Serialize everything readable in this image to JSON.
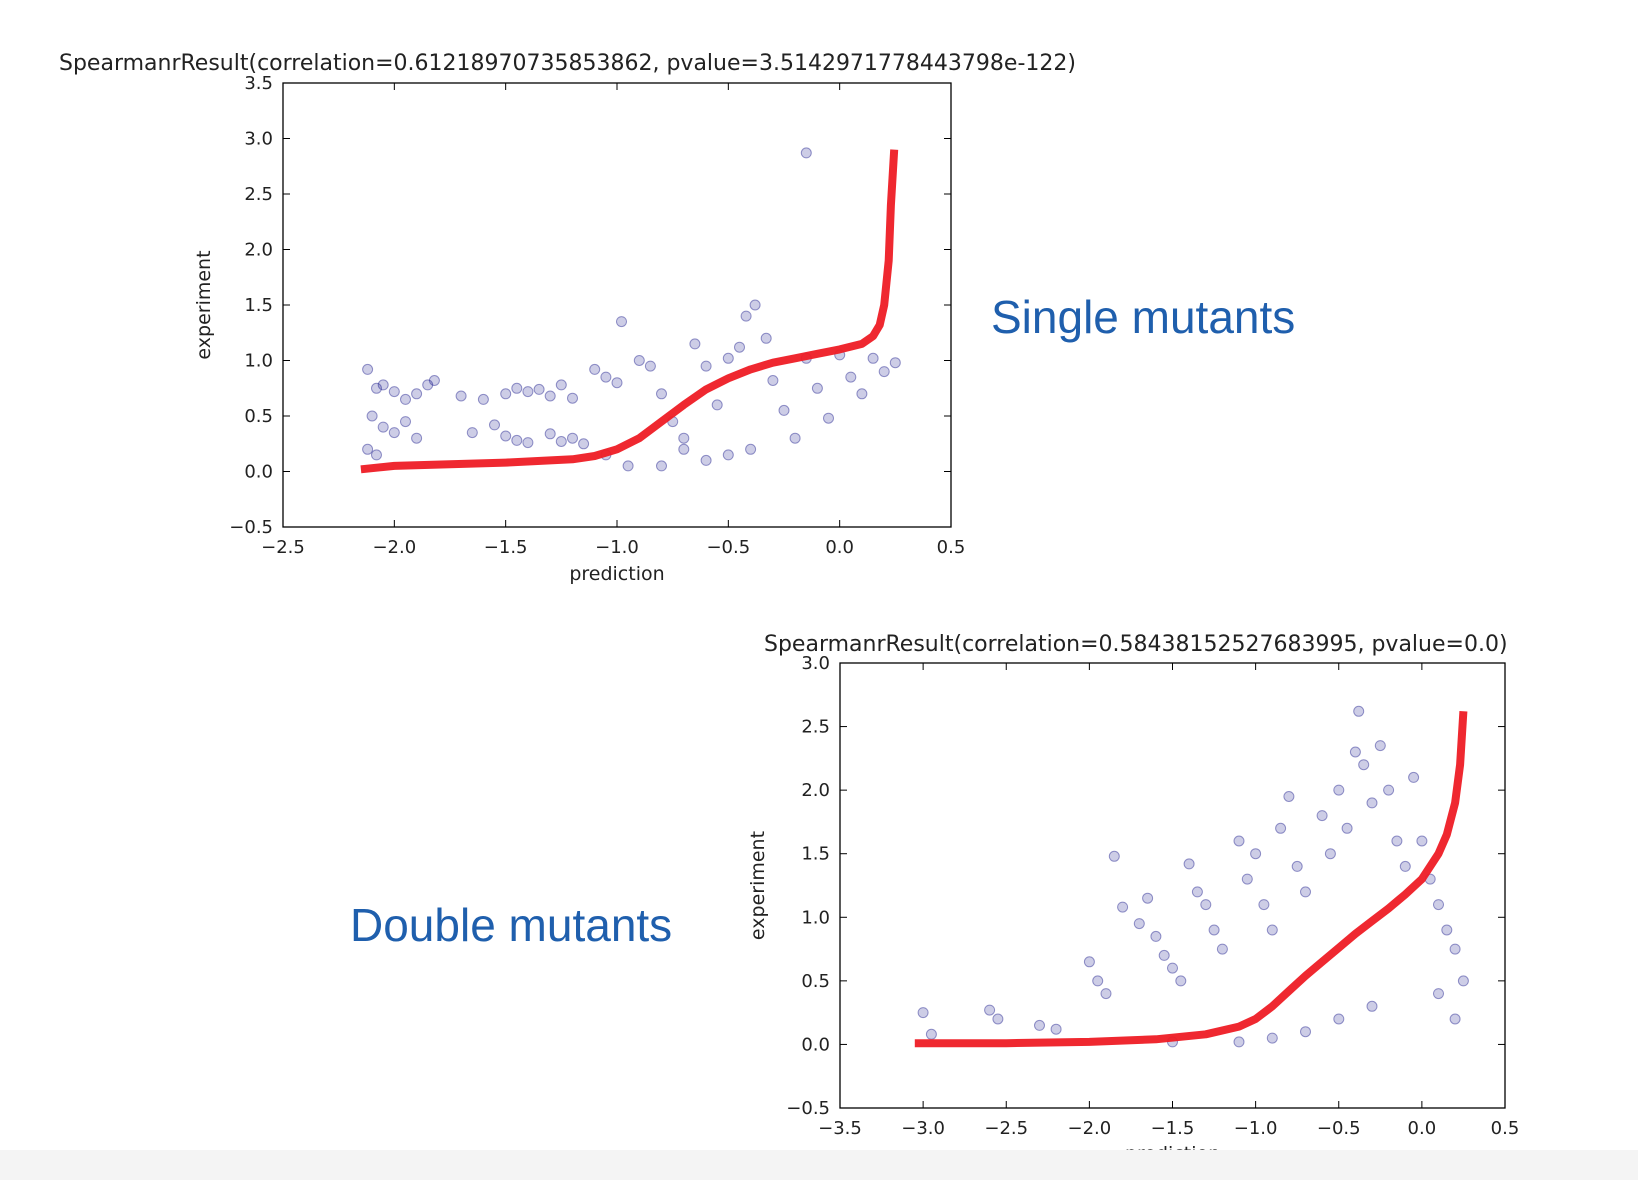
{
  "captions": {
    "single": "Single mutants",
    "double": "Double mutants"
  },
  "colors": {
    "points": "#1a1a8c",
    "curve": "#ee1c25",
    "caption": "#1f5fad"
  },
  "chart_data": [
    {
      "type": "scatter",
      "title": "SpearmanrResult(correlation=0.61218970735853862, pvalue=3.5142971778443798e-122)",
      "xlabel": "prediction",
      "ylabel": "experiment",
      "xlim": [
        -2.5,
        0.5
      ],
      "ylim": [
        -0.5,
        3.5
      ],
      "xticks": [
        -2.5,
        -2.0,
        -1.5,
        -1.0,
        -0.5,
        0.0,
        0.5
      ],
      "yticks": [
        -0.5,
        0.0,
        0.5,
        1.0,
        1.5,
        2.0,
        2.5,
        3.0,
        3.5
      ],
      "xtick_labels": [
        "−2.5",
        "−2.0",
        "−1.5",
        "−1.0",
        "−0.5",
        "0.0",
        "0.5"
      ],
      "ytick_labels": [
        "−0.5",
        "0.0",
        "0.5",
        "1.0",
        "1.5",
        "2.0",
        "2.5",
        "3.0",
        "3.5"
      ],
      "grid": false,
      "series": [
        {
          "kind": "scatter",
          "points": [
            [
              -2.12,
              0.92
            ],
            [
              -2.08,
              0.75
            ],
            [
              -2.05,
              0.78
            ],
            [
              -2.0,
              0.72
            ],
            [
              -1.95,
              0.65
            ],
            [
              -1.9,
              0.7
            ],
            [
              -1.85,
              0.78
            ],
            [
              -1.82,
              0.82
            ],
            [
              -2.1,
              0.5
            ],
            [
              -2.05,
              0.4
            ],
            [
              -2.0,
              0.35
            ],
            [
              -1.95,
              0.45
            ],
            [
              -1.9,
              0.3
            ],
            [
              -2.12,
              0.2
            ],
            [
              -2.08,
              0.15
            ],
            [
              -1.7,
              0.68
            ],
            [
              -1.6,
              0.65
            ],
            [
              -1.5,
              0.7
            ],
            [
              -1.45,
              0.75
            ],
            [
              -1.4,
              0.72
            ],
            [
              -1.35,
              0.74
            ],
            [
              -1.3,
              0.68
            ],
            [
              -1.25,
              0.78
            ],
            [
              -1.2,
              0.66
            ],
            [
              -1.65,
              0.35
            ],
            [
              -1.55,
              0.42
            ],
            [
              -1.5,
              0.32
            ],
            [
              -1.45,
              0.28
            ],
            [
              -1.4,
              0.26
            ],
            [
              -1.3,
              0.34
            ],
            [
              -1.25,
              0.27
            ],
            [
              -1.2,
              0.3
            ],
            [
              -1.15,
              0.25
            ],
            [
              -1.1,
              0.92
            ],
            [
              -1.05,
              0.85
            ],
            [
              -1.0,
              0.8
            ],
            [
              -0.98,
              1.35
            ],
            [
              -0.9,
              1.0
            ],
            [
              -0.85,
              0.95
            ],
            [
              -0.8,
              0.7
            ],
            [
              -0.75,
              0.45
            ],
            [
              -0.7,
              0.3
            ],
            [
              -0.65,
              1.15
            ],
            [
              -0.6,
              0.95
            ],
            [
              -0.55,
              0.6
            ],
            [
              -0.5,
              1.02
            ],
            [
              -0.45,
              1.12
            ],
            [
              -0.42,
              1.4
            ],
            [
              -0.38,
              1.5
            ],
            [
              -0.33,
              1.2
            ],
            [
              -0.3,
              0.82
            ],
            [
              -0.25,
              0.55
            ],
            [
              -0.2,
              0.3
            ],
            [
              -0.15,
              2.87
            ],
            [
              -0.15,
              1.02
            ],
            [
              -0.1,
              0.75
            ],
            [
              -0.05,
              0.48
            ],
            [
              0.0,
              1.05
            ],
            [
              0.05,
              0.85
            ],
            [
              0.1,
              0.7
            ],
            [
              0.15,
              1.02
            ],
            [
              0.2,
              0.9
            ],
            [
              0.25,
              0.98
            ],
            [
              -0.6,
              0.1
            ],
            [
              -0.7,
              0.2
            ],
            [
              -0.8,
              0.05
            ],
            [
              -0.5,
              0.15
            ],
            [
              -0.4,
              0.2
            ],
            [
              -0.95,
              0.05
            ],
            [
              -1.05,
              0.15
            ]
          ]
        },
        {
          "kind": "line",
          "points": [
            [
              -2.15,
              0.02
            ],
            [
              -2.0,
              0.05
            ],
            [
              -1.5,
              0.08
            ],
            [
              -1.2,
              0.11
            ],
            [
              -1.1,
              0.14
            ],
            [
              -1.0,
              0.2
            ],
            [
              -0.9,
              0.3
            ],
            [
              -0.8,
              0.45
            ],
            [
              -0.7,
              0.6
            ],
            [
              -0.6,
              0.74
            ],
            [
              -0.5,
              0.84
            ],
            [
              -0.4,
              0.92
            ],
            [
              -0.3,
              0.98
            ],
            [
              -0.2,
              1.02
            ],
            [
              -0.1,
              1.06
            ],
            [
              0.0,
              1.1
            ],
            [
              0.1,
              1.15
            ],
            [
              0.15,
              1.22
            ],
            [
              0.18,
              1.32
            ],
            [
              0.2,
              1.5
            ],
            [
              0.22,
              1.9
            ],
            [
              0.23,
              2.4
            ],
            [
              0.245,
              2.9
            ]
          ]
        }
      ]
    },
    {
      "type": "scatter",
      "title": "SpearmanrResult(correlation=0.58438152527683995, pvalue=0.0)",
      "xlabel": "prediction",
      "ylabel": "experiment",
      "xlim": [
        -3.5,
        0.5
      ],
      "ylim": [
        -0.5,
        3.0
      ],
      "xticks": [
        -3.5,
        -3.0,
        -2.5,
        -2.0,
        -1.5,
        -1.0,
        -0.5,
        0.0,
        0.5
      ],
      "yticks": [
        -0.5,
        0.0,
        0.5,
        1.0,
        1.5,
        2.0,
        2.5,
        3.0
      ],
      "xtick_labels": [
        "−3.5",
        "−3.0",
        "−2.5",
        "−2.0",
        "−1.5",
        "−1.0",
        "−0.5",
        "0.0",
        "0.5"
      ],
      "ytick_labels": [
        "−0.5",
        "0.0",
        "0.5",
        "1.0",
        "1.5",
        "2.0",
        "2.5",
        "3.0"
      ],
      "grid": false,
      "series": [
        {
          "kind": "scatter",
          "points": [
            [
              -3.0,
              0.25
            ],
            [
              -2.95,
              0.08
            ],
            [
              -2.6,
              0.27
            ],
            [
              -2.55,
              0.2
            ],
            [
              -2.3,
              0.15
            ],
            [
              -2.2,
              0.12
            ],
            [
              -2.0,
              0.65
            ],
            [
              -1.95,
              0.5
            ],
            [
              -1.9,
              0.4
            ],
            [
              -1.85,
              1.48
            ],
            [
              -1.8,
              1.08
            ],
            [
              -1.7,
              0.95
            ],
            [
              -1.65,
              1.15
            ],
            [
              -1.6,
              0.85
            ],
            [
              -1.55,
              0.7
            ],
            [
              -1.5,
              0.6
            ],
            [
              -1.45,
              0.5
            ],
            [
              -1.4,
              1.42
            ],
            [
              -1.35,
              1.2
            ],
            [
              -1.3,
              1.1
            ],
            [
              -1.25,
              0.9
            ],
            [
              -1.2,
              0.75
            ],
            [
              -1.1,
              1.6
            ],
            [
              -1.05,
              1.3
            ],
            [
              -1.0,
              1.5
            ],
            [
              -0.95,
              1.1
            ],
            [
              -0.9,
              0.9
            ],
            [
              -0.85,
              1.7
            ],
            [
              -0.8,
              1.95
            ],
            [
              -0.75,
              1.4
            ],
            [
              -0.7,
              1.2
            ],
            [
              -0.6,
              1.8
            ],
            [
              -0.55,
              1.5
            ],
            [
              -0.5,
              2.0
            ],
            [
              -0.45,
              1.7
            ],
            [
              -0.4,
              2.3
            ],
            [
              -0.38,
              2.62
            ],
            [
              -0.35,
              2.2
            ],
            [
              -0.3,
              1.9
            ],
            [
              -0.25,
              2.35
            ],
            [
              -0.2,
              2.0
            ],
            [
              -0.15,
              1.6
            ],
            [
              -0.1,
              1.4
            ],
            [
              -0.05,
              2.1
            ],
            [
              0.0,
              1.6
            ],
            [
              0.05,
              1.3
            ],
            [
              0.1,
              1.1
            ],
            [
              0.15,
              0.9
            ],
            [
              0.2,
              0.75
            ],
            [
              0.25,
              0.5
            ],
            [
              -0.3,
              0.3
            ],
            [
              -0.5,
              0.2
            ],
            [
              -0.7,
              0.1
            ],
            [
              -0.9,
              0.05
            ],
            [
              -1.1,
              0.02
            ],
            [
              -1.5,
              0.02
            ],
            [
              0.2,
              0.2
            ],
            [
              0.1,
              0.4
            ]
          ]
        },
        {
          "kind": "line",
          "points": [
            [
              -3.05,
              0.01
            ],
            [
              -2.5,
              0.01
            ],
            [
              -2.0,
              0.02
            ],
            [
              -1.6,
              0.04
            ],
            [
              -1.3,
              0.08
            ],
            [
              -1.1,
              0.14
            ],
            [
              -1.0,
              0.2
            ],
            [
              -0.9,
              0.3
            ],
            [
              -0.8,
              0.42
            ],
            [
              -0.7,
              0.54
            ],
            [
              -0.6,
              0.65
            ],
            [
              -0.5,
              0.76
            ],
            [
              -0.4,
              0.87
            ],
            [
              -0.3,
              0.97
            ],
            [
              -0.2,
              1.07
            ],
            [
              -0.1,
              1.18
            ],
            [
              0.0,
              1.3
            ],
            [
              0.1,
              1.5
            ],
            [
              0.15,
              1.65
            ],
            [
              0.2,
              1.9
            ],
            [
              0.23,
              2.2
            ],
            [
              0.25,
              2.62
            ]
          ]
        }
      ]
    }
  ]
}
